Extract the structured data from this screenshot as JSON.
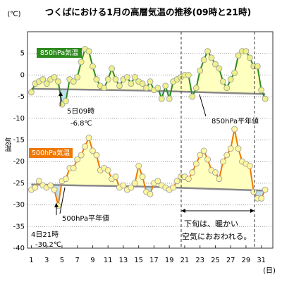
{
  "chart_data": {
    "type": "line",
    "title": "つくばにおける1月の高層気温の推移(09時と21時)",
    "y_unit": "(℃)",
    "y_label": "気温",
    "x_unit": "(日)",
    "xlim": [
      0.5,
      32.5
    ],
    "xticks": [
      1,
      3,
      5,
      7,
      9,
      11,
      13,
      15,
      17,
      19,
      21,
      23,
      25,
      27,
      29,
      31
    ],
    "ylim": [
      -40,
      10
    ],
    "yticks": [
      -40,
      -35,
      -30,
      -25,
      -20,
      -15,
      -10,
      -5,
      0,
      5
    ],
    "grid": true,
    "x": [
      1,
      1.5,
      2,
      2.5,
      3,
      3.5,
      4,
      4.5,
      5,
      5.5,
      6,
      6.5,
      7,
      7.5,
      8,
      8.5,
      9,
      9.5,
      10,
      10.5,
      11,
      11.5,
      12,
      12.5,
      13,
      13.5,
      14,
      14.5,
      15,
      15.5,
      16,
      16.5,
      17,
      17.5,
      18,
      18.5,
      19,
      19.5,
      20,
      20.5,
      21,
      21.5,
      22,
      22.5,
      23,
      23.5,
      24,
      24.5,
      25,
      25.5,
      26,
      26.5,
      27,
      27.5,
      28,
      28.5,
      29,
      29.5,
      30,
      30.5,
      31,
      31.5
    ],
    "series": [
      {
        "name": "850hPa気温",
        "color": "#2e8b1e",
        "marker": "#eef08a",
        "values": [
          -4,
          -2,
          -1.5,
          -1,
          -2,
          -1,
          -0.5,
          -1.5,
          -6.8,
          -6,
          -1,
          -1.5,
          -0.5,
          3,
          6,
          5.5,
          2,
          -1,
          -2.5,
          -3,
          -1,
          1.5,
          -1,
          -2.5,
          -1,
          -0.5,
          -2,
          -0.5,
          -1.5,
          -2,
          -3,
          -1.5,
          -3.5,
          -3,
          -5.5,
          -2.5,
          -5.5,
          -1.5,
          -1,
          -0.5,
          0,
          0,
          -5,
          -3,
          1,
          3.5,
          5.5,
          4,
          2.5,
          1.5,
          -1.5,
          -3,
          -1,
          0.5,
          4.5,
          5.5,
          5.5,
          4,
          2,
          2,
          -3.5,
          -5.5
        ]
      },
      {
        "name": "500hPa気温",
        "color": "#f07800",
        "marker": "#fff6a0",
        "values": [
          -26.5,
          -26,
          -24.5,
          -25.5,
          -26,
          -25.5,
          -26.5,
          -30.2,
          -24.5,
          -24,
          -21.5,
          -21.5,
          -19.5,
          -18.5,
          -16.5,
          -14.5,
          -17.5,
          -18.5,
          -22,
          -21.5,
          -22,
          -24,
          -23.5,
          -26,
          -25.5,
          -26.5,
          -26,
          -25,
          -21,
          -23.5,
          -27,
          -27.5,
          -25,
          -24.5,
          -25.5,
          -26,
          -26.5,
          -26,
          -24.5,
          -23.5,
          -23.5,
          -24,
          -22.5,
          -20.5,
          -18.5,
          -17.5,
          -19.5,
          -22,
          -22.5,
          -24,
          -20,
          -18.5,
          -17,
          -12.5,
          -17,
          -20,
          -20.5,
          -21,
          -27,
          -28.5,
          -28.5,
          -26.5
        ]
      }
    ],
    "normals": [
      {
        "name": "850hPa平年値",
        "color": "#888888",
        "x": [
          1,
          16,
          31.5
        ],
        "values": [
          -3.2,
          -3.6,
          -4.4
        ]
      },
      {
        "name": "500hPa平年値",
        "color": "#888888",
        "x": [
          1,
          16,
          31.5
        ],
        "values": [
          -25.3,
          -25.8,
          -26.7
        ]
      }
    ],
    "warm_color": "#ffffc0",
    "cold_color": "#bfe0f0",
    "annotations": [
      [
        "5日09時",
        "-6.8℃"
      ],
      [
        "4日21時",
        "-30.2℃"
      ],
      [
        "下旬は、暖かい",
        "空気におおわれる。"
      ]
    ]
  }
}
